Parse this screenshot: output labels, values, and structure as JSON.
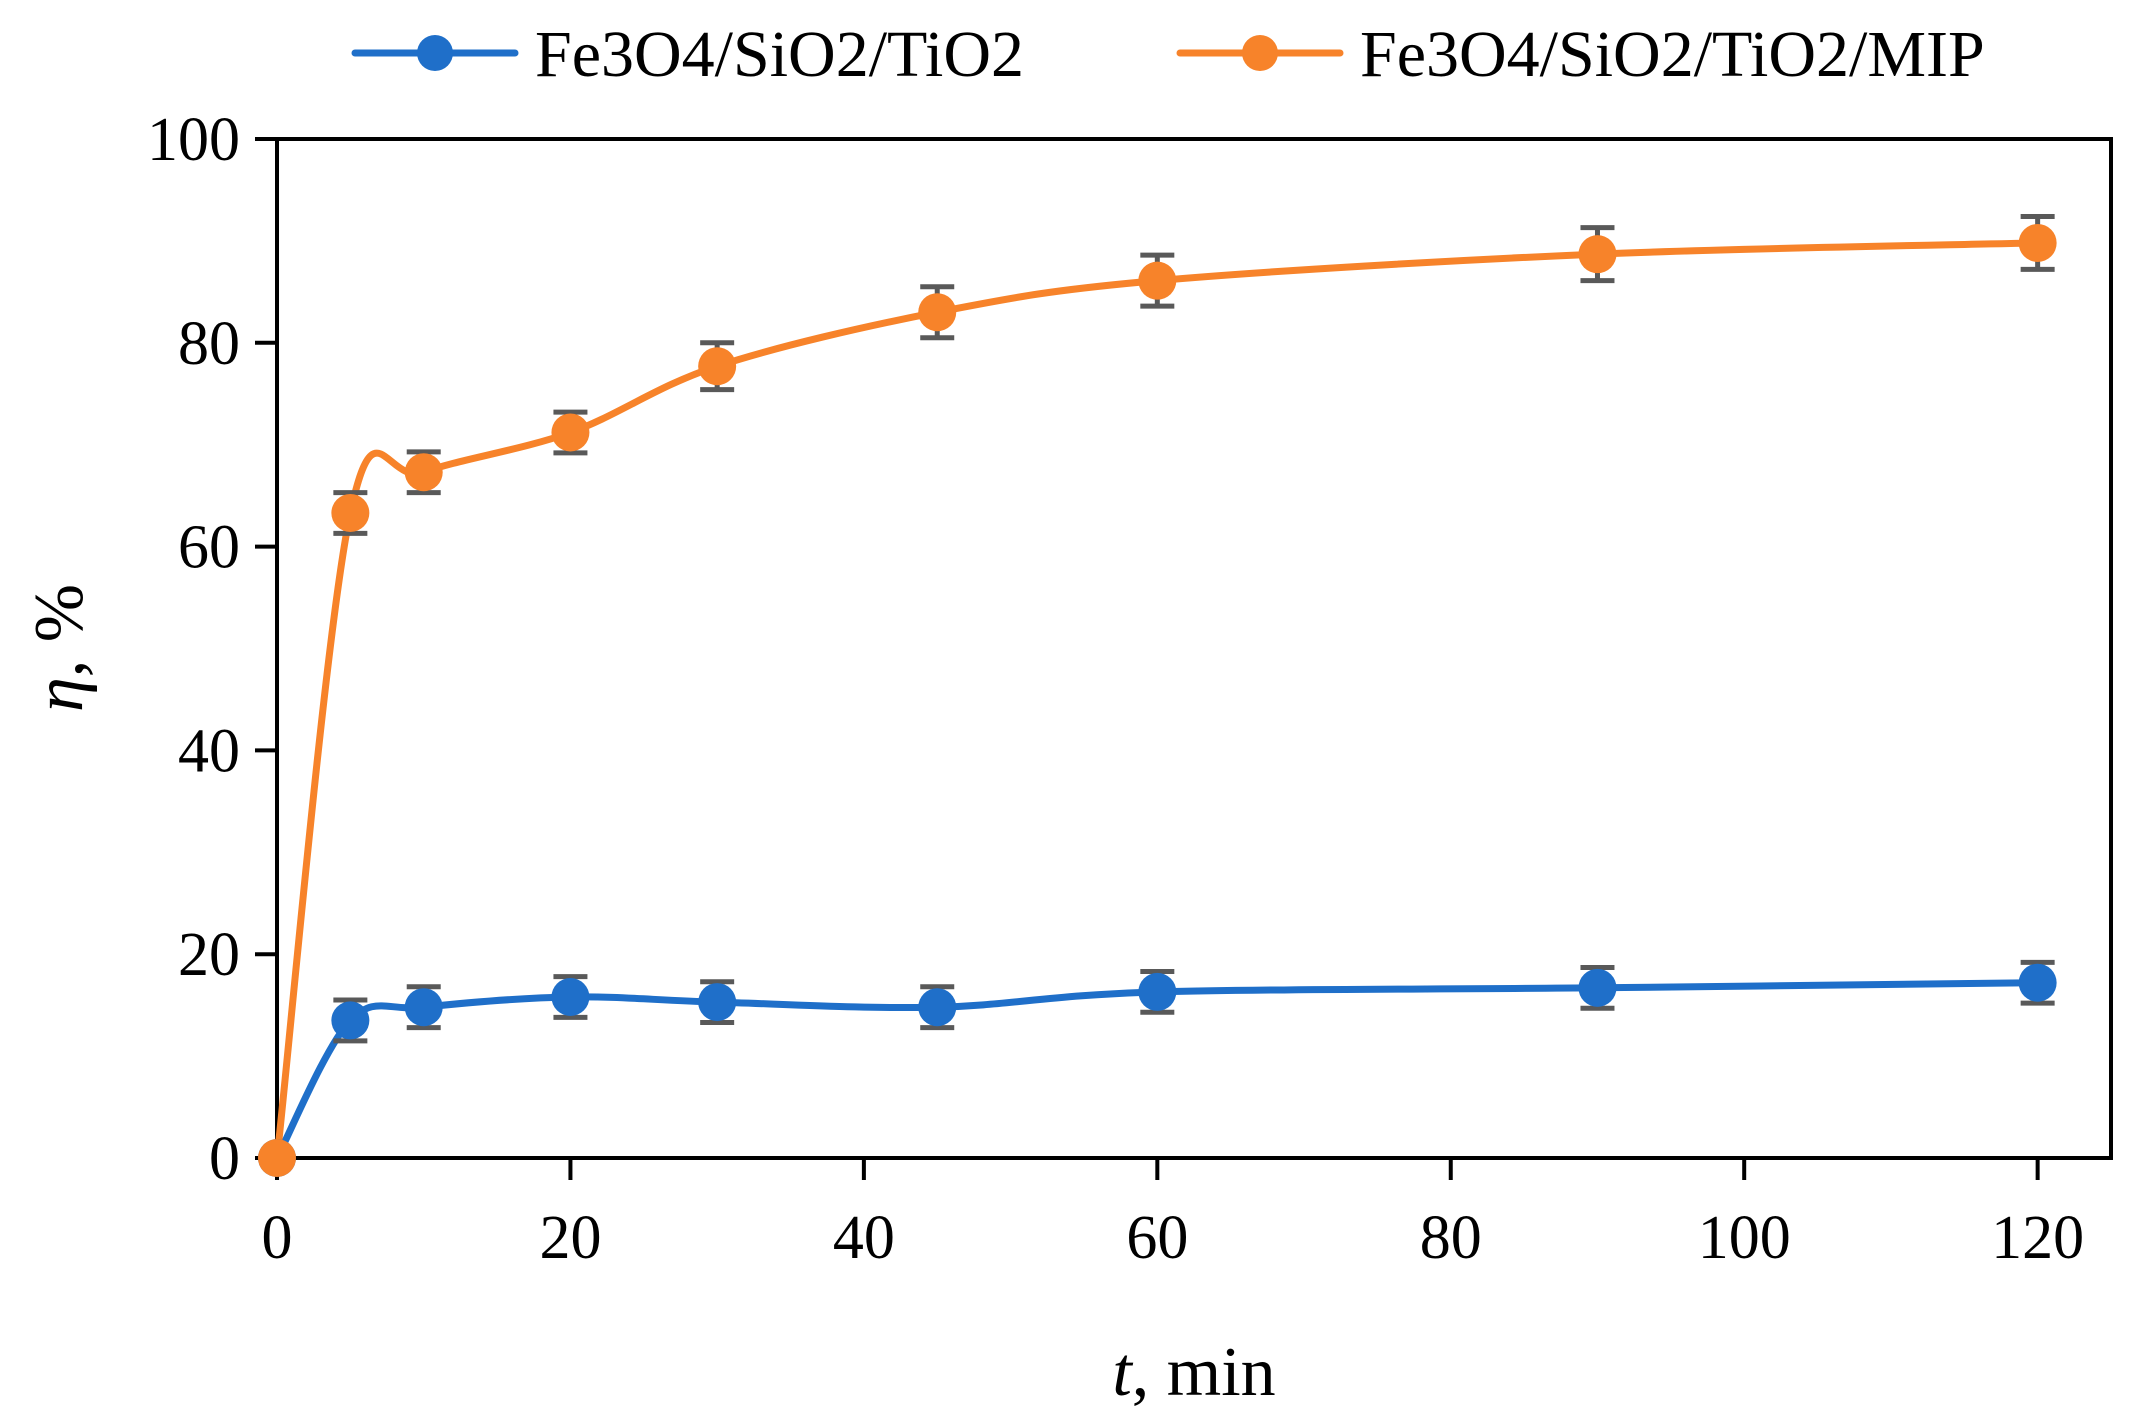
{
  "chart_data": {
    "type": "line",
    "title": "",
    "xlabel_italic": "t",
    "xlabel_rest": ", min",
    "ylabel_italic": "η",
    "ylabel_rest": ", %",
    "xlim": [
      0,
      125
    ],
    "ylim": [
      0,
      100
    ],
    "xticks": [
      0,
      20,
      40,
      60,
      80,
      100,
      120
    ],
    "yticks": [
      0,
      20,
      40,
      60,
      80,
      100
    ],
    "xtick_labels": [
      "0",
      "20",
      "40",
      "60",
      "80",
      "100",
      "120"
    ],
    "ytick_labels": [
      "0",
      "20",
      "40",
      "60",
      "80",
      "100"
    ],
    "grid": false,
    "legend_position": "top",
    "smooth": true,
    "x": [
      0,
      5,
      10,
      20,
      30,
      45,
      60,
      90,
      120
    ],
    "series": [
      {
        "name": "Fe3O4/SiO2/TiO2",
        "color": "#1f6fc9",
        "values": [
          0,
          13.5,
          14.8,
          15.8,
          15.3,
          14.8,
          16.3,
          16.7,
          17.2
        ],
        "errors": [
          0,
          2.0,
          2.0,
          2.0,
          2.0,
          2.0,
          2.0,
          2.0,
          2.0
        ]
      },
      {
        "name": "Fe3O4/SiO2/TiO2/MIP",
        "color": "#f7832a",
        "values": [
          0,
          63.3,
          67.3,
          71.2,
          77.7,
          83.0,
          86.1,
          88.7,
          89.8
        ],
        "errors": [
          0,
          2.0,
          2.0,
          2.0,
          2.3,
          2.5,
          2.5,
          2.6,
          2.6
        ]
      }
    ],
    "errorbar_color": "#595959"
  }
}
